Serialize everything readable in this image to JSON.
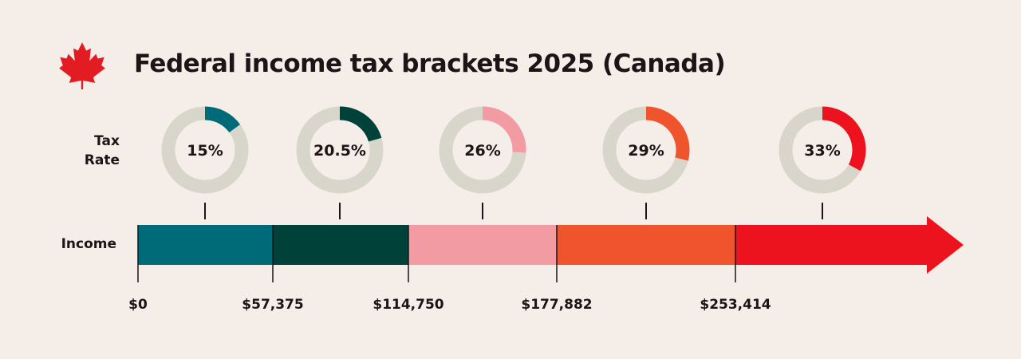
{
  "title": "Federal income tax brackets 2025 (Canada)",
  "labels": {
    "tax_rate_line1": "Tax",
    "tax_rate_line2": "Rate",
    "income": "Income"
  },
  "colors": {
    "background": "#f5eee8",
    "ring_track": "#d8d6cb",
    "text": "#1c1416",
    "maple_leaf": "#e31b23"
  },
  "icons": {
    "flag": "maple-leaf-icon"
  },
  "chart_data": {
    "type": "bar",
    "title": "Federal income tax brackets 2025 (Canada)",
    "xlabel": "Income",
    "ylabel": "Tax Rate",
    "threshold_labels": [
      "$0",
      "$57,375",
      "$114,750",
      "$177,882",
      "$253,414"
    ],
    "thresholds": [
      0,
      57375,
      114750,
      177882,
      253414
    ],
    "brackets": [
      {
        "rate_label": "15%",
        "rate": 15,
        "from": 0,
        "to": 57375,
        "color": "#006b78"
      },
      {
        "rate_label": "20.5%",
        "rate": 20.5,
        "from": 57375,
        "to": 114750,
        "color": "#00413a"
      },
      {
        "rate_label": "26%",
        "rate": 26,
        "from": 114750,
        "to": 177882,
        "color": "#f39ba2"
      },
      {
        "rate_label": "29%",
        "rate": 29,
        "from": 177882,
        "to": 253414,
        "color": "#f0542d"
      },
      {
        "rate_label": "33%",
        "rate": 33,
        "from": 253414,
        "to": null,
        "color": "#ec131e"
      }
    ]
  }
}
